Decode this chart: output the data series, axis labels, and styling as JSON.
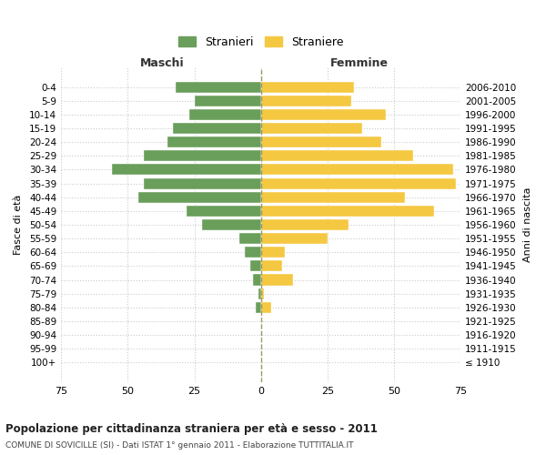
{
  "age_groups": [
    "100+",
    "95-99",
    "90-94",
    "85-89",
    "80-84",
    "75-79",
    "70-74",
    "65-69",
    "60-64",
    "55-59",
    "50-54",
    "45-49",
    "40-44",
    "35-39",
    "30-34",
    "25-29",
    "20-24",
    "15-19",
    "10-14",
    "5-9",
    "0-4"
  ],
  "birth_years": [
    "≤ 1910",
    "1911-1915",
    "1916-1920",
    "1921-1925",
    "1926-1930",
    "1931-1935",
    "1936-1940",
    "1941-1945",
    "1946-1950",
    "1951-1955",
    "1956-1960",
    "1961-1965",
    "1966-1970",
    "1971-1975",
    "1976-1980",
    "1981-1985",
    "1986-1990",
    "1991-1995",
    "1996-2000",
    "2001-2005",
    "2006-2010"
  ],
  "maschi": [
    0,
    0,
    0,
    0,
    2,
    1,
    3,
    4,
    6,
    8,
    22,
    28,
    46,
    44,
    56,
    44,
    35,
    33,
    27,
    25,
    32
  ],
  "femmine": [
    0,
    0,
    0,
    0,
    4,
    1,
    12,
    8,
    9,
    25,
    33,
    65,
    54,
    73,
    72,
    57,
    45,
    38,
    47,
    34,
    35
  ],
  "maschi_color": "#6a9e5b",
  "femmine_color": "#f5c842",
  "bg_color": "#ffffff",
  "grid_color": "#cccccc",
  "bar_height": 0.8,
  "xlim": 75,
  "title": "Popolazione per cittadinanza straniera per età e sesso - 2011",
  "subtitle": "COMUNE DI SOVICILLE (SI) - Dati ISTAT 1° gennaio 2011 - Elaborazione TUTTITALIA.IT",
  "ylabel_left": "Fasce di età",
  "ylabel_right": "Anni di nascita",
  "label_maschi": "Maschi",
  "label_femmine": "Femmine",
  "legend_stranieri": "Stranieri",
  "legend_straniere": "Straniere",
  "xticks": [
    75,
    50,
    25,
    0,
    25,
    50,
    75
  ],
  "xtick_labels": [
    "75",
    "50",
    "25",
    "0",
    "25",
    "50",
    "75"
  ]
}
